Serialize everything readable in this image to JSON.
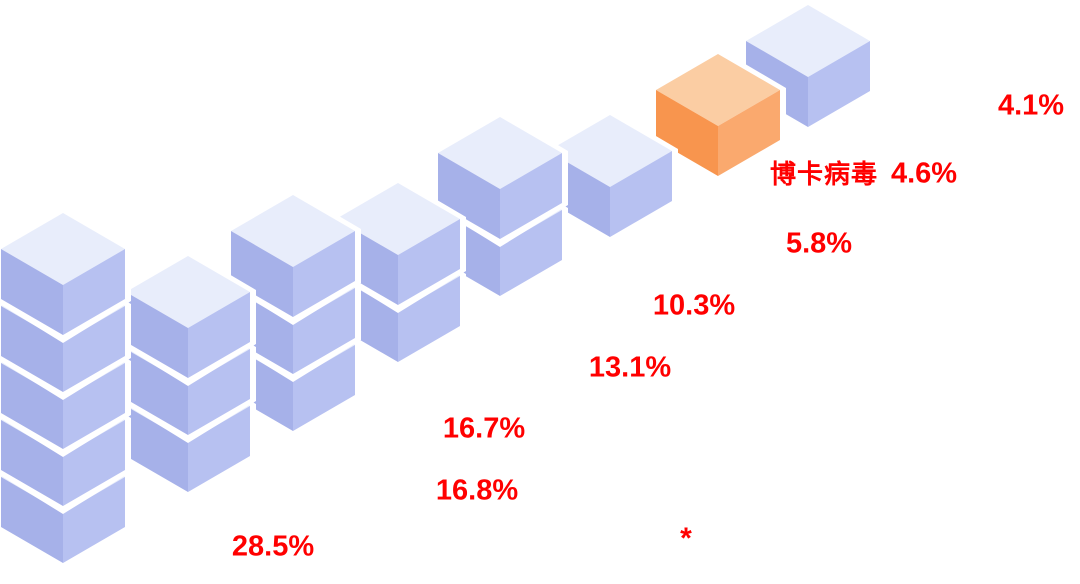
{
  "chart_data": {
    "type": "bar",
    "variant": "isometric-cube-stack-chart",
    "title": "",
    "xlabel": "",
    "ylabel": "",
    "axes": "none",
    "grid": false,
    "legend_position": "none",
    "categories": [
      "",
      "",
      "",
      "",
      "",
      "",
      "博卡病毒",
      ""
    ],
    "bars": [
      {
        "name": "",
        "value": 28.5,
        "value_label": "28.5%",
        "cubes": 5,
        "highlighted": false
      },
      {
        "name": "",
        "value": 16.8,
        "value_label": "16.8%",
        "cubes": 3,
        "highlighted": false
      },
      {
        "name": "",
        "value": 16.7,
        "value_label": "16.7%",
        "cubes": 3,
        "highlighted": false
      },
      {
        "name": "",
        "value": 13.1,
        "value_label": "13.1%",
        "cubes": 2,
        "highlighted": false
      },
      {
        "name": "",
        "value": 10.3,
        "value_label": "10.3%",
        "cubes": 2,
        "highlighted": false
      },
      {
        "name": "",
        "value": 5.8,
        "value_label": "5.8%",
        "cubes": 1,
        "highlighted": false
      },
      {
        "name": "博卡病毒",
        "value": 4.6,
        "value_label": "4.6%",
        "cubes": 1,
        "highlighted": true
      },
      {
        "name": "",
        "value": 4.1,
        "value_label": "4.1%",
        "cubes": 1,
        "highlighted": false
      }
    ],
    "footnote_marker": "*"
  },
  "colors": {
    "background": "#FFFFFF",
    "label_text": "#FF0000",
    "gap": "#FFFFFF",
    "cube_default": {
      "top": "#E8EDFB",
      "left": "#A6B1E9",
      "right": "#B7C1F1"
    },
    "cube_highlight": {
      "top": "#FBCDA3",
      "left": "#F8954E",
      "right": "#FAA96E"
    }
  }
}
